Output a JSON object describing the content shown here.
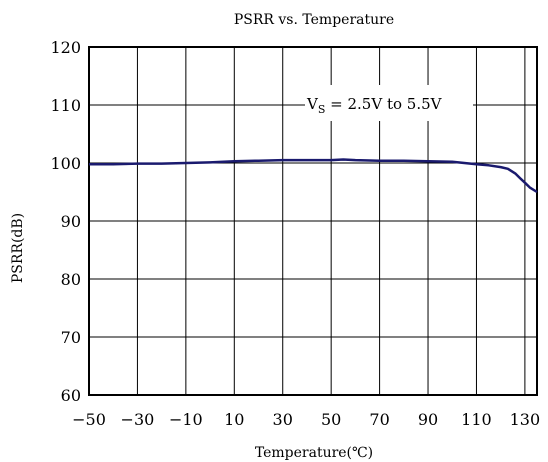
{
  "chart_data": {
    "type": "line",
    "title": "PSRR vs. Temperature",
    "xlabel": "Temperature(℃)",
    "ylabel": "PSRR(dB)",
    "xlim": [
      -50,
      135
    ],
    "ylim": [
      60,
      120
    ],
    "x_ticks": [
      -50,
      -30,
      -10,
      10,
      30,
      50,
      70,
      90,
      110,
      130
    ],
    "y_ticks": [
      60,
      70,
      80,
      90,
      100,
      110,
      120
    ],
    "grid": true,
    "annotation": {
      "prefix": "V",
      "subscript": "S",
      "text": " = 2.5V to 5.5V"
    },
    "series": [
      {
        "color": "#1a1a6e",
        "x": [
          -50,
          -40,
          -30,
          -20,
          -10,
          0,
          10,
          20,
          30,
          40,
          50,
          55,
          60,
          70,
          80,
          90,
          100,
          110,
          115,
          120,
          123,
          126,
          128,
          130,
          132,
          135
        ],
        "y": [
          99.8,
          99.8,
          99.9,
          99.9,
          100.0,
          100.1,
          100.3,
          100.4,
          100.5,
          100.5,
          100.5,
          100.6,
          100.5,
          100.4,
          100.4,
          100.3,
          100.2,
          99.8,
          99.6,
          99.3,
          99.0,
          98.2,
          97.4,
          96.6,
          95.8,
          95.0
        ]
      }
    ]
  }
}
